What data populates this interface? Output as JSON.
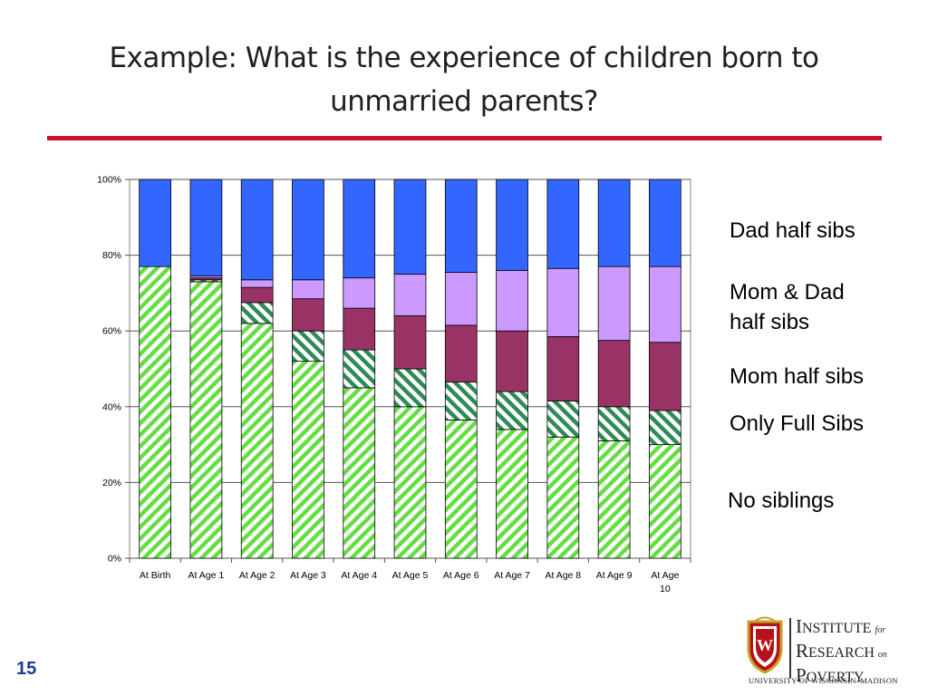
{
  "slide": {
    "title_line1": "Example: What is the experience of children born to",
    "title_line2": "unmarried parents?",
    "number": "15"
  },
  "legend": {
    "dad_half_sibs": "Dad half sibs",
    "mom_dad_line1": "Mom & Dad",
    "mom_dad_line2": "half sibs",
    "mom_half_sibs": "Mom half sibs",
    "only_full_sibs": "Only Full Sibs",
    "no_siblings": "No siblings"
  },
  "logo": {
    "line1_cap": "I",
    "line1_rest": "NSTITUTE",
    "line1_small": "for",
    "line2_cap": "R",
    "line2_rest": "ESEARCH",
    "line2_small": "on",
    "line3_cap": "P",
    "line3_rest": "OVERTY",
    "university": "UNIVERSITY OF WISCONSIN–MADISON",
    "crest_letter": "W"
  },
  "colors": {
    "no_siblings": "#66dd44",
    "only_full_sibs": "#2e8b57",
    "mom_half_sibs": "#993366",
    "mom_dad_half_sibs": "#cc99ff",
    "dad_half_sibs": "#3366ff",
    "title_rule": "#c8102e",
    "slide_number": "#1f3a93"
  },
  "chart_data": {
    "type": "bar",
    "stacked": true,
    "percent": true,
    "categories": [
      "At Birth",
      "At Age 1",
      "At Age 2",
      "At Age 3",
      "At Age 4",
      "At Age 5",
      "At Age 6",
      "At Age 7",
      "At Age 8",
      "At Age 9",
      "At Age 10"
    ],
    "category_lines": [
      [
        "At Birth"
      ],
      [
        "At Age 1"
      ],
      [
        "At Age 2"
      ],
      [
        "At Age 3"
      ],
      [
        "At Age 4"
      ],
      [
        "At Age 5"
      ],
      [
        "At Age 6"
      ],
      [
        "At Age 7"
      ],
      [
        "At Age 8"
      ],
      [
        "At Age 9"
      ],
      [
        "At Age",
        "10"
      ]
    ],
    "series": [
      {
        "name": "No siblings",
        "values": [
          77,
          73,
          62,
          52,
          45,
          40,
          36.5,
          34,
          32,
          31,
          30
        ]
      },
      {
        "name": "Only Full Sibs",
        "values": [
          0,
          0.5,
          5.5,
          8,
          10,
          10,
          10,
          10,
          9.5,
          9,
          9
        ]
      },
      {
        "name": "Mom half sibs",
        "values": [
          0,
          0.5,
          4,
          8.5,
          11,
          14,
          15,
          16,
          17,
          17.5,
          18
        ]
      },
      {
        "name": "Mom & Dad half sibs",
        "values": [
          0,
          0.5,
          2,
          5,
          8,
          11,
          14,
          16,
          18,
          19.5,
          20
        ]
      },
      {
        "name": "Dad half sibs",
        "values": [
          23,
          25.5,
          26.5,
          26.5,
          26,
          25,
          24.5,
          24,
          23.5,
          23,
          23
        ]
      }
    ],
    "ylim": [
      0,
      100
    ],
    "yticks": [
      "0%",
      "20%",
      "40%",
      "60%",
      "80%",
      "100%"
    ],
    "grid": true,
    "legend_position": "right"
  }
}
